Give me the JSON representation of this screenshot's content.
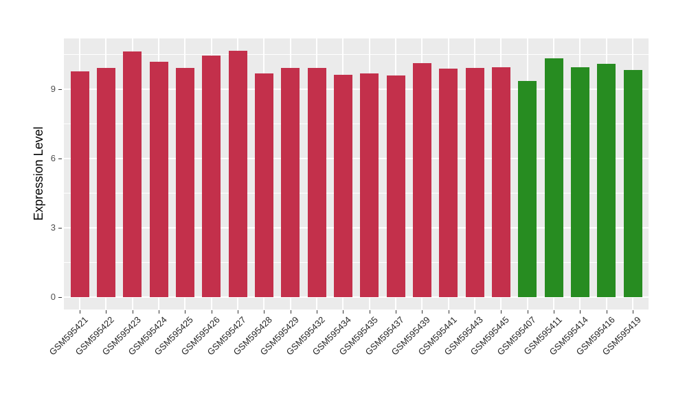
{
  "chart_data": {
    "type": "bar",
    "title": "",
    "xlabel": "",
    "ylabel": "Expression Level",
    "categories": [
      "GSM595421",
      "GSM595422",
      "GSM595423",
      "GSM595424",
      "GSM595425",
      "GSM595426",
      "GSM595427",
      "GSM595428",
      "GSM595429",
      "GSM595432",
      "GSM595434",
      "GSM595435",
      "GSM595437",
      "GSM595439",
      "GSM595441",
      "GSM595443",
      "GSM595445",
      "GSM595407",
      "GSM595411",
      "GSM595414",
      "GSM595416",
      "GSM595419"
    ],
    "values": [
      9.78,
      9.92,
      10.63,
      10.2,
      9.92,
      10.46,
      10.65,
      9.69,
      9.92,
      9.93,
      9.62,
      9.67,
      9.59,
      10.14,
      9.89,
      9.92,
      9.96,
      9.35,
      10.34,
      9.95,
      10.11,
      9.83
    ],
    "bar_colors": [
      "#C3304B",
      "#C3304B",
      "#C3304B",
      "#C3304B",
      "#C3304B",
      "#C3304B",
      "#C3304B",
      "#C3304B",
      "#C3304B",
      "#C3304B",
      "#C3304B",
      "#C3304B",
      "#C3304B",
      "#C3304B",
      "#C3304B",
      "#C3304B",
      "#C3304B",
      "#278C21",
      "#278C21",
      "#278C21",
      "#278C21",
      "#278C21"
    ],
    "palette": {
      "group1_red": "#C3304B",
      "group2_green": "#278C21"
    },
    "yticks": [
      0,
      3,
      6,
      9
    ],
    "ytick_labels": [
      "0",
      "3",
      "6",
      "9"
    ],
    "minor_yticks": [
      1.5,
      4.5,
      7.5,
      10.5
    ],
    "ylim": [
      0,
      11.2
    ],
    "x_tick_rotation": -45,
    "grid": "white major and minor gridlines on gray panel",
    "panel_background": "#EBEBEB",
    "gridline_color": "#FFFFFF",
    "legend": "none"
  }
}
